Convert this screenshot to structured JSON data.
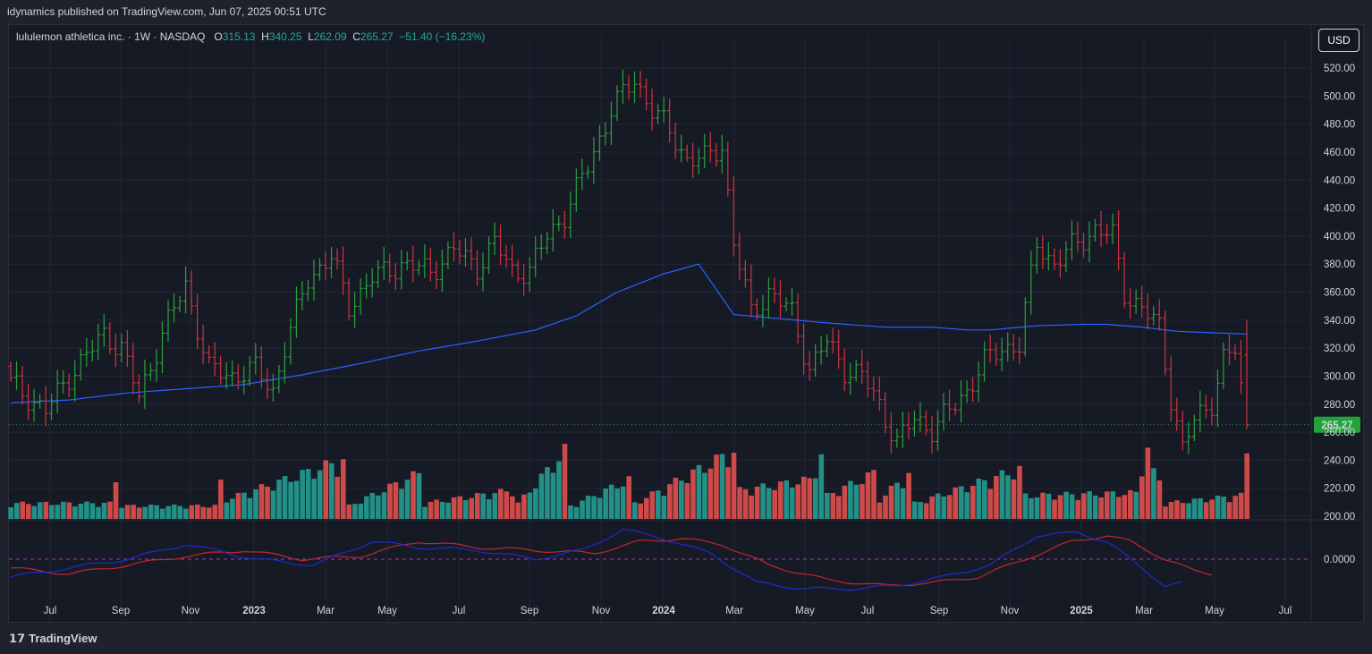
{
  "header": {
    "publish_line": "idynamics published on TradingView.com, Jun 07, 2025 00:51 UTC"
  },
  "legend": {
    "symbol": "lululemon athletica inc. · 1W · NASDAQ",
    "o_label": "O",
    "o_value": "315.13",
    "h_label": "H",
    "h_value": "340.25",
    "l_label": "L",
    "l_value": "262.09",
    "c_label": "C",
    "c_value": "265.27",
    "change": "−51.40 (−16.23%)"
  },
  "currency_button": "USD",
  "footer": {
    "brand": "TradingView",
    "logo_icon": "tradingview-logo-icon"
  },
  "colors": {
    "up": "#2e9e3e",
    "down": "#d0333f",
    "ma": "#2962ff",
    "vol_up": "#26a69a",
    "vol_down": "#ef5350",
    "osc_fast": "#1e2bd0",
    "osc_slow": "#c0282f"
  },
  "chart_data": {
    "type": "ohlc",
    "interval": "1W",
    "price_axis_labels": [
      "520.00",
      "500.00",
      "480.00",
      "460.00",
      "440.00",
      "420.00",
      "400.00",
      "380.00",
      "360.00",
      "340.00",
      "320.00",
      "300.00",
      "280.00",
      "260.00",
      "240.00",
      "220.00",
      "200.00"
    ],
    "osc_axis_label": "0.0000",
    "last_price_label": "265.27",
    "x_labels": [
      "Jul",
      "Sep",
      "Nov",
      "2023",
      "Mar",
      "May",
      "Jul",
      "Sep",
      "Nov",
      "2024",
      "Mar",
      "May",
      "Jul",
      "Sep",
      "Nov",
      "2025",
      "Mar",
      "May",
      "Jul"
    ],
    "x_label_bold": [
      "2023",
      "2024",
      "2025"
    ],
    "close_anchors": [
      [
        0,
        295
      ],
      [
        6,
        275
      ],
      [
        10,
        300
      ],
      [
        16,
        330
      ],
      [
        19,
        320
      ],
      [
        22,
        285
      ],
      [
        26,
        330
      ],
      [
        30,
        365
      ],
      [
        34,
        305
      ],
      [
        38,
        300
      ],
      [
        42,
        305
      ],
      [
        45,
        290
      ],
      [
        47,
        320
      ],
      [
        51,
        370
      ],
      [
        55,
        385
      ],
      [
        58,
        350
      ],
      [
        62,
        370
      ],
      [
        67,
        380
      ],
      [
        72,
        375
      ],
      [
        76,
        390
      ],
      [
        80,
        378
      ],
      [
        83,
        395
      ],
      [
        86,
        375
      ],
      [
        89,
        375
      ],
      [
        92,
        400
      ],
      [
        95,
        415
      ],
      [
        99,
        450
      ],
      [
        103,
        490
      ],
      [
        107,
        512
      ],
      [
        110,
        490
      ],
      [
        113,
        475
      ],
      [
        116,
        455
      ],
      [
        119,
        455
      ],
      [
        122,
        465
      ],
      [
        124,
        395
      ],
      [
        127,
        345
      ],
      [
        130,
        360
      ],
      [
        134,
        345
      ],
      [
        137,
        305
      ],
      [
        140,
        325
      ],
      [
        143,
        305
      ],
      [
        146,
        300
      ],
      [
        149,
        280
      ],
      [
        152,
        252
      ],
      [
        155,
        270
      ],
      [
        158,
        262
      ],
      [
        161,
        275
      ],
      [
        164,
        290
      ],
      [
        167,
        310
      ],
      [
        170,
        320
      ],
      [
        173,
        322
      ],
      [
        176,
        395
      ],
      [
        179,
        380
      ],
      [
        182,
        392
      ],
      [
        186,
        405
      ],
      [
        189,
        400
      ],
      [
        191,
        360
      ],
      [
        194,
        348
      ],
      [
        197,
        335
      ],
      [
        199,
        285
      ],
      [
        201,
        248
      ],
      [
        203,
        268
      ],
      [
        206,
        282
      ],
      [
        208,
        312
      ],
      [
        210,
        318
      ],
      [
        212,
        265
      ]
    ],
    "ma_anchors": [
      [
        0,
        281
      ],
      [
        10,
        283
      ],
      [
        20,
        288
      ],
      [
        30,
        291
      ],
      [
        40,
        294
      ],
      [
        50,
        301
      ],
      [
        60,
        309
      ],
      [
        70,
        318
      ],
      [
        80,
        325
      ],
      [
        90,
        333
      ],
      [
        97,
        343
      ],
      [
        104,
        360
      ],
      [
        112,
        373
      ],
      [
        118,
        380
      ],
      [
        124,
        344
      ],
      [
        132,
        341
      ],
      [
        140,
        338
      ],
      [
        150,
        335
      ],
      [
        158,
        335
      ],
      [
        164,
        333
      ],
      [
        168,
        333
      ],
      [
        176,
        336
      ],
      [
        184,
        337
      ],
      [
        188,
        337
      ],
      [
        194,
        335
      ],
      [
        200,
        332
      ],
      [
        212,
        330
      ]
    ],
    "volume_anchors": [
      [
        0,
        0.12
      ],
      [
        17,
        0.12
      ],
      [
        18,
        0.3
      ],
      [
        19,
        0.1
      ],
      [
        35,
        0.1
      ],
      [
        36,
        0.28
      ],
      [
        37,
        0.15
      ],
      [
        57,
        0.45
      ],
      [
        58,
        0.1
      ],
      [
        70,
        0.35
      ],
      [
        71,
        0.12
      ],
      [
        86,
        0.22
      ],
      [
        87,
        0.12
      ],
      [
        95,
        0.52
      ],
      [
        96,
        0.1
      ],
      [
        106,
        0.3
      ],
      [
        107,
        0.12
      ],
      [
        124,
        0.52
      ],
      [
        125,
        0.22
      ],
      [
        137,
        0.3
      ],
      [
        139,
        0.5
      ],
      [
        140,
        0.18
      ],
      [
        148,
        0.35
      ],
      [
        149,
        0.15
      ],
      [
        154,
        0.35
      ],
      [
        155,
        0.12
      ],
      [
        173,
        0.38
      ],
      [
        174,
        0.18
      ],
      [
        193,
        0.2
      ],
      [
        194,
        0.42
      ],
      [
        195,
        0.55
      ],
      [
        196,
        0.35
      ],
      [
        197,
        0.3
      ],
      [
        198,
        0.12
      ],
      [
        211,
        0.18
      ],
      [
        212,
        0.52
      ]
    ],
    "osc_fast_anchors": [
      [
        0,
        -0.6
      ],
      [
        10,
        -0.3
      ],
      [
        20,
        0.0
      ],
      [
        30,
        0.5
      ],
      [
        35,
        0.3
      ],
      [
        42,
        0.0
      ],
      [
        52,
        -0.2
      ],
      [
        62,
        0.6
      ],
      [
        70,
        0.4
      ],
      [
        80,
        0.3
      ],
      [
        90,
        0.0
      ],
      [
        98,
        0.3
      ],
      [
        105,
        1.0
      ],
      [
        112,
        0.7
      ],
      [
        120,
        0.2
      ],
      [
        128,
        -0.8
      ],
      [
        136,
        -1.0
      ],
      [
        145,
        -1.0
      ],
      [
        152,
        -0.9
      ],
      [
        160,
        -0.6
      ],
      [
        168,
        -0.2
      ],
      [
        176,
        0.8
      ],
      [
        183,
        0.9
      ],
      [
        188,
        0.6
      ],
      [
        194,
        -0.3
      ],
      [
        198,
        -0.9
      ],
      [
        201,
        -0.8
      ]
    ],
    "osc_slow_anchors": [
      [
        0,
        -0.3
      ],
      [
        10,
        -0.5
      ],
      [
        20,
        -0.2
      ],
      [
        30,
        0.1
      ],
      [
        40,
        0.3
      ],
      [
        50,
        0.0
      ],
      [
        60,
        0.1
      ],
      [
        70,
        0.6
      ],
      [
        80,
        0.4
      ],
      [
        90,
        0.3
      ],
      [
        100,
        0.2
      ],
      [
        108,
        0.6
      ],
      [
        115,
        0.7
      ],
      [
        122,
        0.5
      ],
      [
        130,
        -0.2
      ],
      [
        140,
        -0.7
      ],
      [
        150,
        -0.9
      ],
      [
        158,
        -0.8
      ],
      [
        166,
        -0.6
      ],
      [
        174,
        0.0
      ],
      [
        182,
        0.6
      ],
      [
        188,
        0.8
      ],
      [
        192,
        0.6
      ],
      [
        198,
        0.0
      ],
      [
        203,
        -0.4
      ],
      [
        206,
        -0.5
      ]
    ]
  }
}
